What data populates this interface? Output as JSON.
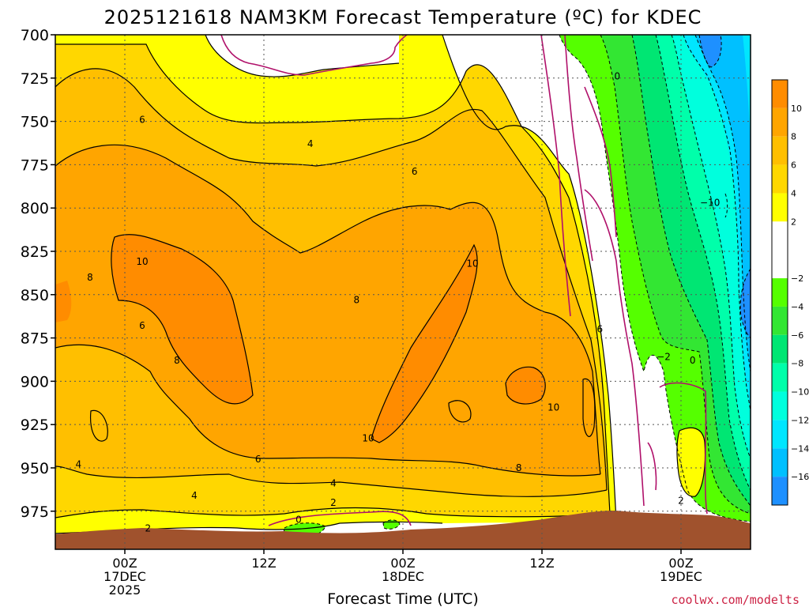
{
  "chart_data": {
    "type": "heatmap",
    "title": "2025121618 NAM3KM Forecast Temperature (ºC) for KDEC",
    "xlabel": "Forecast Time (UTC)",
    "ylabel": "",
    "y_axis": {
      "unit": "hPa",
      "ticks": [
        700,
        725,
        750,
        775,
        800,
        825,
        850,
        875,
        900,
        925,
        950,
        975
      ],
      "range": [
        700,
        997
      ]
    },
    "x_axis": {
      "range_hours": [
        -6,
        54
      ],
      "ticks": [
        {
          "hour": 0,
          "lines": [
            "00Z",
            "17DEC",
            "2025"
          ]
        },
        {
          "hour": 12,
          "lines": [
            "12Z"
          ]
        },
        {
          "hour": 24,
          "lines": [
            "00Z",
            "18DEC"
          ]
        },
        {
          "hour": 36,
          "lines": [
            "12Z"
          ]
        },
        {
          "hour": 48,
          "lines": [
            "00Z",
            "19DEC"
          ]
        }
      ]
    },
    "grid": true,
    "colorbar": {
      "placement": "right",
      "labels": [
        "10",
        "8",
        "6",
        "4",
        "2",
        "−2",
        "−4",
        "−6",
        "−8",
        "−10",
        "−12",
        "−14",
        "−16"
      ],
      "bins": [
        {
          "from": 10,
          "to": 12,
          "color": "#FF8C00"
        },
        {
          "from": 8,
          "to": 10,
          "color": "#FFA500"
        },
        {
          "from": 6,
          "to": 8,
          "color": "#FFBF00"
        },
        {
          "from": 4,
          "to": 6,
          "color": "#FFD700"
        },
        {
          "from": 2,
          "to": 4,
          "color": "#FFFF00"
        },
        {
          "from": -2,
          "to": 2,
          "color": "#FFFFFF"
        },
        {
          "from": -4,
          "to": -2,
          "color": "#55FF00"
        },
        {
          "from": -6,
          "to": -4,
          "color": "#33E633"
        },
        {
          "from": -8,
          "to": -6,
          "color": "#00E673"
        },
        {
          "from": -10,
          "to": -8,
          "color": "#00FFAA"
        },
        {
          "from": -12,
          "to": -10,
          "color": "#00FFDD"
        },
        {
          "from": -14,
          "to": -12,
          "color": "#00E6FF"
        },
        {
          "from": -16,
          "to": -14,
          "color": "#00C0FF"
        },
        {
          "from": -18,
          "to": -16,
          "color": "#1E90FF"
        }
      ]
    },
    "contour_labels": [
      {
        "text": "6",
        "hour": 1.5,
        "p": 749
      },
      {
        "text": "4",
        "hour": 16,
        "p": 763
      },
      {
        "text": "6",
        "hour": 25,
        "p": 779
      },
      {
        "text": "0",
        "hour": 42.5,
        "p": 724
      },
      {
        "text": "−10",
        "hour": 50.5,
        "p": 797
      },
      {
        "text": "10",
        "hour": 1.5,
        "p": 831
      },
      {
        "text": "8",
        "hour": -3,
        "p": 840
      },
      {
        "text": "8",
        "hour": 20,
        "p": 853
      },
      {
        "text": "10",
        "hour": 30,
        "p": 832
      },
      {
        "text": "6",
        "hour": 1.5,
        "p": 868
      },
      {
        "text": "8",
        "hour": 4.5,
        "p": 888
      },
      {
        "text": "6",
        "hour": 41,
        "p": 870
      },
      {
        "text": "−2",
        "hour": 46.5,
        "p": 886
      },
      {
        "text": "0",
        "hour": 49,
        "p": 888
      },
      {
        "text": "10",
        "hour": 37,
        "p": 915
      },
      {
        "text": "10",
        "hour": 21,
        "p": 933
      },
      {
        "text": "6",
        "hour": 11.5,
        "p": 945
      },
      {
        "text": "4",
        "hour": -4,
        "p": 948
      },
      {
        "text": "8",
        "hour": 34,
        "p": 950
      },
      {
        "text": "4",
        "hour": 6,
        "p": 966
      },
      {
        "text": "4",
        "hour": 18,
        "p": 959
      },
      {
        "text": "2",
        "hour": 18,
        "p": 970
      },
      {
        "text": "0",
        "hour": 15,
        "p": 980
      },
      {
        "text": "2",
        "hour": 48,
        "p": 969
      },
      {
        "text": "2",
        "hour": 2,
        "p": 985
      }
    ],
    "terrain_color": "#A0522D"
  },
  "footer": {
    "credit": "coolwx.com/modelts"
  },
  "colors": {
    "credit_text": "#CC2244",
    "zero_isotherm": "#B0106A"
  }
}
